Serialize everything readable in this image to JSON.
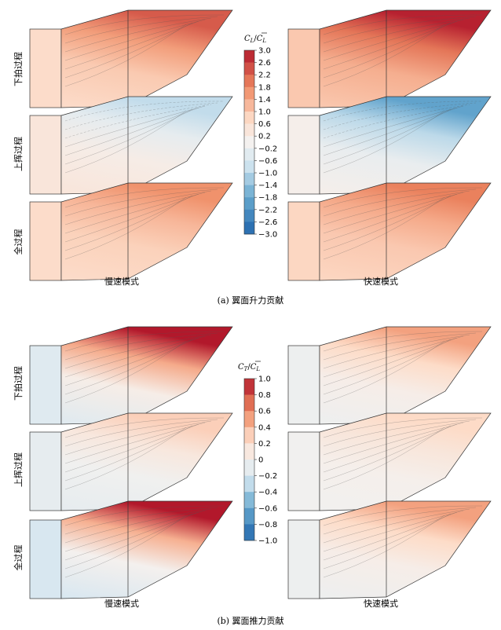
{
  "chart_data": [
    {
      "type": "heatmap",
      "panel": "a",
      "caption": "(a) 翼面升力贡献",
      "colorbar_title": "C_L/C̄_L",
      "colorbar_ticks": [
        "3.0",
        "2.6",
        "2.2",
        "1.8",
        "1.4",
        "1.0",
        "0.6",
        "0.2",
        "−0.2",
        "−0.6",
        "−1.0",
        "−1.4",
        "−1.8",
        "−2.2",
        "−2.6",
        "−3.0"
      ],
      "vmin": -3.0,
      "vmax": 3.0,
      "rows": [
        "下拍过程",
        "上挥过程",
        "全过程"
      ],
      "columns": [
        "慢速模式",
        "快速模式"
      ],
      "series": [
        {
          "name": "慢速模式 下拍过程",
          "base": 0.7,
          "tip": 2.3
        },
        {
          "name": "快速模式 下拍过程",
          "base": 1.0,
          "tip": 2.9
        },
        {
          "name": "慢速模式 上挥过程",
          "base": 0.4,
          "tip": -0.9
        },
        {
          "name": "快速模式 上挥过程",
          "base": 0.1,
          "tip": -1.9
        },
        {
          "name": "慢速模式 全过程",
          "base": 0.7,
          "tip": 1.7
        },
        {
          "name": "快速模式 全过程",
          "base": 0.8,
          "tip": 1.9
        }
      ]
    },
    {
      "type": "heatmap",
      "panel": "b",
      "caption": "(b) 翼面推力贡献",
      "colorbar_title": "C_T/C̄_L",
      "colorbar_ticks": [
        "1.0",
        "0.8",
        "0.6",
        "0.4",
        "0.2",
        "0",
        "−0.2",
        "−0.4",
        "−0.6",
        "−0.8",
        "−1.0"
      ],
      "vmin": -1.0,
      "vmax": 1.0,
      "rows": [
        "下拍过程",
        "上挥过程",
        "全过程"
      ],
      "columns": [
        "慢速模式",
        "快速模式"
      ],
      "series": [
        {
          "name": "慢速模式 下拍过程",
          "base": -0.15,
          "tip": 1.0
        },
        {
          "name": "快速模式 下拍过程",
          "base": -0.05,
          "tip": 0.5
        },
        {
          "name": "慢速模式 上挥过程",
          "base": -0.1,
          "tip": 0.3
        },
        {
          "name": "快速模式 上挥过程",
          "base": -0.02,
          "tip": 0.25
        },
        {
          "name": "慢速模式 全过程",
          "base": -0.2,
          "tip": 1.0
        },
        {
          "name": "快速模式 全过程",
          "base": -0.05,
          "tip": 0.5
        }
      ]
    }
  ],
  "labels": {
    "rows": [
      "下拍过程",
      "上挥过程",
      "全过程"
    ],
    "mode_slow": "慢速模式",
    "mode_fast": "快速模式",
    "caption_a": "(a) 翼面升力贡献",
    "caption_b": "(b) 翼面推力贡献",
    "cb_a_num": "C",
    "cb_a_sub": "L",
    "cb_a_den": "C",
    "cb_a_densub": "L",
    "cb_b_num": "C",
    "cb_b_sub": "T",
    "cb_b_den": "C",
    "cb_b_densub": "L"
  },
  "colors": {
    "positive": "#b2182b",
    "negative": "#2166ac",
    "neutral": "#f4f1ef",
    "outline": "#333333"
  }
}
